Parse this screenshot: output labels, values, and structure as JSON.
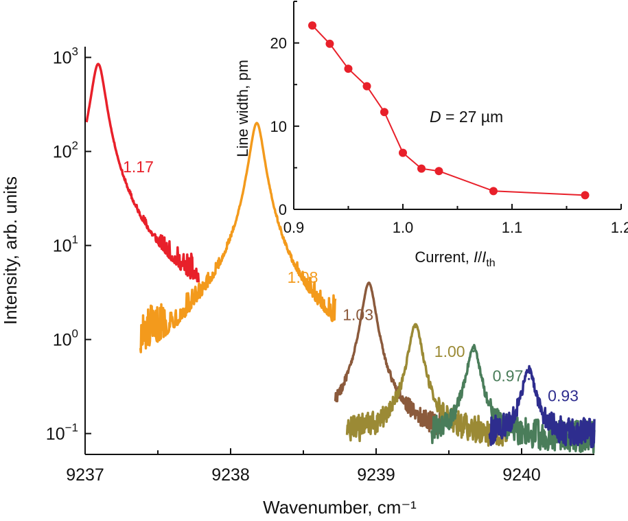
{
  "chart_data": [
    {
      "type": "line",
      "title": "",
      "xlabel": "Wavenumber, cm⁻¹",
      "ylabel": "Intensity, arb. units",
      "yscale": "log",
      "xlim": [
        9237.0,
        9240.5
      ],
      "ylim": [
        0.06,
        1300
      ],
      "x_ticks": [
        {
          "value": 9237,
          "label": "9237"
        },
        {
          "value": 9238,
          "label": "9238"
        },
        {
          "value": 9239,
          "label": "9239"
        },
        {
          "value": 9240,
          "label": "9240"
        }
      ],
      "y_ticks": [
        {
          "value": 1000,
          "base": "10",
          "exp": "3"
        },
        {
          "value": 100,
          "base": "10",
          "exp": "2"
        },
        {
          "value": 10,
          "base": "10",
          "exp": "1"
        },
        {
          "value": 1,
          "base": "10",
          "exp": "0"
        },
        {
          "value": 0.1,
          "base": "10",
          "exp": "−1"
        }
      ],
      "series": [
        {
          "name": "1.17",
          "label": "1.17",
          "color": "#e8202a",
          "peak_x": 9237.09,
          "peak_y": 850,
          "x_start": 9237.01,
          "x_end": 9237.78,
          "noise_floor": 0.9,
          "label_x": 9237.26,
          "label_y": 60
        },
        {
          "name": "1.08",
          "label": "1.08",
          "color": "#f39a1c",
          "peak_x": 9238.18,
          "peak_y": 200,
          "x_start": 9237.38,
          "x_end": 9238.72,
          "noise_floor": 0.35,
          "label_x": 9238.39,
          "label_y": 4.0
        },
        {
          "name": "1.03",
          "label": "1.03",
          "color": "#8b5a3c",
          "peak_x": 9238.95,
          "peak_y": 3.9,
          "x_start": 9238.72,
          "x_end": 9239.45,
          "noise_floor": 0.09,
          "label_x": 9238.77,
          "label_y": 1.6
        },
        {
          "name": "1.00",
          "label": "1.00",
          "color": "#9b8a35",
          "peak_x": 9239.27,
          "peak_y": 1.35,
          "x_start": 9238.8,
          "x_end": 9239.9,
          "noise_floor": 0.095,
          "label_x": 9239.4,
          "label_y": 0.65
        },
        {
          "name": "0.97",
          "label": "0.97",
          "color": "#4a7d5a",
          "peak_x": 9239.67,
          "peak_y": 0.75,
          "x_start": 9239.38,
          "x_end": 9240.5,
          "noise_floor": 0.09,
          "label_x": 9239.8,
          "label_y": 0.36
        },
        {
          "name": "0.93",
          "label": "0.93",
          "color": "#2e2d8e",
          "peak_x": 9240.05,
          "peak_y": 0.38,
          "x_start": 9239.78,
          "x_end": 9240.5,
          "noise_floor": 0.095,
          "label_x": 9240.18,
          "label_y": 0.22
        }
      ]
    },
    {
      "type": "scatter",
      "title": "",
      "xlabel": "Current, ",
      "xlabel_italic": "I",
      "xlabel_sep": "/",
      "xlabel_italic2": "I",
      "xlabel_sub": "th",
      "ylabel": "Line width, pm",
      "xlim": [
        0.9,
        1.2
      ],
      "ylim": [
        0,
        25
      ],
      "x_ticks": [
        0.9,
        1.0,
        1.1,
        1.2
      ],
      "x_tick_labels": [
        "0.9",
        "1.0",
        "1.1",
        "1.2"
      ],
      "y_ticks": [
        0,
        10,
        20
      ],
      "y_tick_labels": [
        "0",
        "10",
        "20"
      ],
      "annotation_var": "D",
      "annotation_text": " = 27 µm",
      "color": "#e8202a",
      "x": [
        0.917,
        0.933,
        0.95,
        0.967,
        0.983,
        1.0,
        1.017,
        1.033,
        1.083,
        1.167
      ],
      "y": [
        22.1,
        19.9,
        16.9,
        14.8,
        11.7,
        6.8,
        4.9,
        4.6,
        2.2,
        1.7
      ]
    }
  ]
}
